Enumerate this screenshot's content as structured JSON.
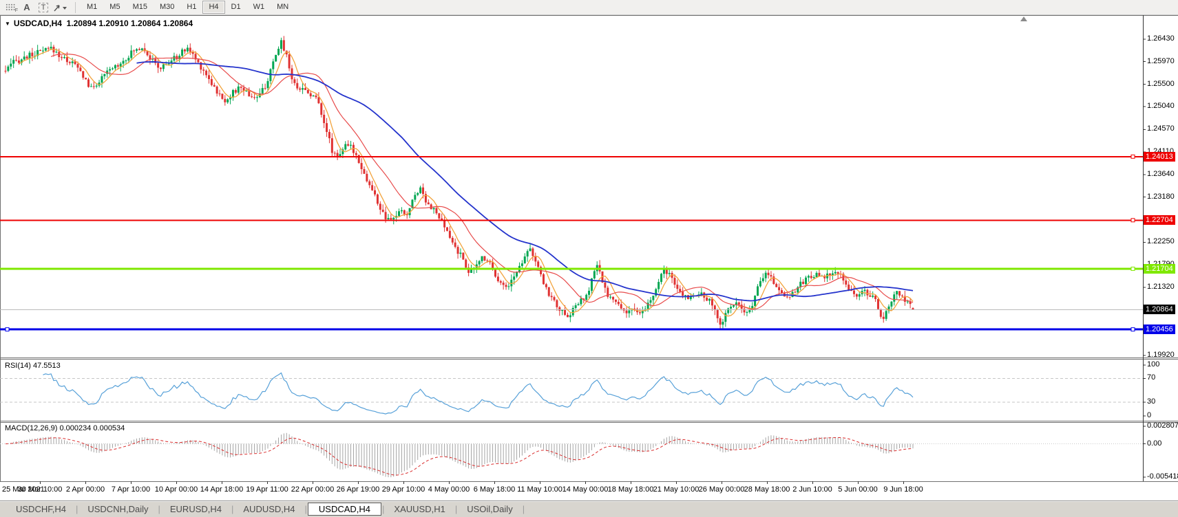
{
  "toolbar": {
    "timeframes": [
      "M1",
      "M5",
      "M15",
      "M30",
      "H1",
      "H4",
      "D1",
      "W1",
      "MN"
    ],
    "active_timeframe": "H4",
    "tools": [
      "chart-grid",
      "font-a",
      "text-label",
      "arrows"
    ]
  },
  "chart": {
    "symbol_label": "USDCAD,H4",
    "ohlc_label": "1.20894 1.20910 1.20864 1.20864",
    "rsi_label": "RSI(14) 47.5513",
    "macd_label": "MACD(12,26,9) 0.000234 0.000534"
  },
  "chart_data": {
    "type": "candlestick",
    "symbol": "USDCAD",
    "timeframe": "H4",
    "ohlc": {
      "open": 1.20894,
      "high": 1.2091,
      "low": 1.20864,
      "close": 1.20864
    },
    "price_axis": {
      "min": 1.1992,
      "max": 1.2643,
      "ticks": [
        "1.26430",
        "1.25970",
        "1.25500",
        "1.25040",
        "1.24570",
        "1.24110",
        "1.23640",
        "1.23180",
        "1.22250",
        "1.21790",
        "1.21320",
        "1.20390",
        "1.19920"
      ]
    },
    "hlines": [
      {
        "price": 1.24013,
        "label": "1.24013",
        "color": "#ee0000",
        "width": 2
      },
      {
        "price": 1.22704,
        "label": "1.22704",
        "color": "#ee0000",
        "width": 2
      },
      {
        "price": 1.21704,
        "label": "1.21704",
        "color": "#7fe800",
        "width": 3
      },
      {
        "price": 1.20456,
        "label": "1.20456",
        "color": "#0000e8",
        "width": 3
      }
    ],
    "current_price": {
      "value": 1.20864,
      "label": "1.20864"
    },
    "colors": {
      "up": "#00a651",
      "down": "#e03232",
      "ma_fast": "#f2a33c",
      "ma_mid": "#e84b4b",
      "ma_slow": "#2433cc",
      "rsi": "#56a0d8",
      "level_dash": "#c6c6c6",
      "macd_hist": "#9a9a9a",
      "macd_signal": "#d92b2b",
      "current_line": "#b9b9b9",
      "frame": "#6f6f6f"
    },
    "moving_averages": [
      {
        "period": 6,
        "color_key": "ma_fast",
        "width": 1.3
      },
      {
        "period": 18,
        "color_key": "ma_mid",
        "width": 1.2
      },
      {
        "period": 50,
        "color_key": "ma_slow",
        "width": 1.8
      }
    ],
    "rsi": {
      "period": 14,
      "value": 47.5513,
      "levels": [
        70,
        30
      ],
      "axis_ticks": [
        "100",
        "70",
        "30",
        "0"
      ],
      "axis_values": [
        100,
        70,
        30,
        0
      ]
    },
    "macd": {
      "fast": 12,
      "slow": 26,
      "signal": 9,
      "values": [
        0.000234,
        0.000534
      ],
      "axis_max": 0.002807,
      "axis_min": -0.005418,
      "axis_ticks": [
        "0.002807",
        "0.00",
        "-0.005418"
      ],
      "axis_tick_values": [
        0.002807,
        0,
        -0.005418
      ]
    },
    "date_axis": [
      "25 Mar 2021",
      "30 Mar 10:00",
      "2 Apr 00:00",
      "7 Apr 10:00",
      "10 Apr 00:00",
      "14 Apr 18:00",
      "19 Apr 11:00",
      "22 Apr 00:00",
      "26 Apr 19:00",
      "29 Apr 10:00",
      "4 May 00:00",
      "6 May 18:00",
      "11 May 10:00",
      "14 May 00:00",
      "18 May 18:00",
      "21 May 10:00",
      "26 May 00:00",
      "28 May 18:00",
      "2 Jun 10:00",
      "5 Jun 00:00",
      "9 Jun 18:00"
    ],
    "candle_count": 340,
    "x_range": [
      8,
      1326
    ],
    "close_path": [
      [
        8,
        1.2578
      ],
      [
        20,
        1.2595
      ],
      [
        40,
        1.2608
      ],
      [
        62,
        1.2618
      ],
      [
        75,
        1.2624
      ],
      [
        90,
        1.2605
      ],
      [
        108,
        1.2592
      ],
      [
        122,
        1.2565
      ],
      [
        132,
        1.254
      ],
      [
        145,
        1.2558
      ],
      [
        160,
        1.258
      ],
      [
        178,
        1.2598
      ],
      [
        195,
        1.262
      ],
      [
        208,
        1.2628
      ],
      [
        220,
        1.26
      ],
      [
        232,
        1.2582
      ],
      [
        245,
        1.2595
      ],
      [
        260,
        1.261
      ],
      [
        272,
        1.2626
      ],
      [
        285,
        1.26
      ],
      [
        300,
        1.257
      ],
      [
        315,
        1.2535
      ],
      [
        325,
        1.2515
      ],
      [
        338,
        1.2532
      ],
      [
        350,
        1.2545
      ],
      [
        362,
        1.2528
      ],
      [
        375,
        1.2522
      ],
      [
        388,
        1.2555
      ],
      [
        400,
        1.2605
      ],
      [
        408,
        1.264
      ],
      [
        416,
        1.2612
      ],
      [
        426,
        1.255
      ],
      [
        438,
        1.2542
      ],
      [
        450,
        1.2532
      ],
      [
        462,
        1.2516
      ],
      [
        472,
        1.2468
      ],
      [
        482,
        1.2415
      ],
      [
        490,
        1.2402
      ],
      [
        500,
        1.2422
      ],
      [
        510,
        1.2421
      ],
      [
        520,
        1.2398
      ],
      [
        532,
        1.2355
      ],
      [
        542,
        1.2328
      ],
      [
        552,
        1.2295
      ],
      [
        562,
        1.2268
      ],
      [
        570,
        1.2272
      ],
      [
        580,
        1.2288
      ],
      [
        592,
        1.2282
      ],
      [
        602,
        1.2322
      ],
      [
        610,
        1.2338
      ],
      [
        620,
        1.2308
      ],
      [
        632,
        1.2288
      ],
      [
        642,
        1.2265
      ],
      [
        652,
        1.2238
      ],
      [
        662,
        1.2212
      ],
      [
        672,
        1.2192
      ],
      [
        682,
        1.2162
      ],
      [
        690,
        1.2172
      ],
      [
        700,
        1.2195
      ],
      [
        710,
        1.2188
      ],
      [
        722,
        1.2152
      ],
      [
        734,
        1.213
      ],
      [
        746,
        1.2152
      ],
      [
        758,
        1.2185
      ],
      [
        768,
        1.2218
      ],
      [
        776,
        1.2192
      ],
      [
        786,
        1.2152
      ],
      [
        796,
        1.2122
      ],
      [
        806,
        1.21
      ],
      [
        816,
        1.2082
      ],
      [
        824,
        1.2066
      ],
      [
        832,
        1.2088
      ],
      [
        842,
        1.2102
      ],
      [
        852,
        1.2112
      ],
      [
        860,
        1.215
      ],
      [
        866,
        1.2178
      ],
      [
        872,
        1.2158
      ],
      [
        880,
        1.2122
      ],
      [
        890,
        1.2106
      ],
      [
        900,
        1.2092
      ],
      [
        910,
        1.2082
      ],
      [
        918,
        1.209
      ],
      [
        928,
        1.2072
      ],
      [
        938,
        1.209
      ],
      [
        948,
        1.2112
      ],
      [
        958,
        1.2145
      ],
      [
        965,
        1.2172
      ],
      [
        972,
        1.2158
      ],
      [
        980,
        1.2135
      ],
      [
        990,
        1.2117
      ],
      [
        1000,
        1.2112
      ],
      [
        1010,
        1.212
      ],
      [
        1020,
        1.2115
      ],
      [
        1030,
        1.2105
      ],
      [
        1040,
        1.2078
      ],
      [
        1047,
        1.2056
      ],
      [
        1055,
        1.2082
      ],
      [
        1065,
        1.21
      ],
      [
        1075,
        1.2092
      ],
      [
        1083,
        1.2072
      ],
      [
        1090,
        1.2088
      ],
      [
        1098,
        1.2122
      ],
      [
        1108,
        1.2152
      ],
      [
        1115,
        1.2165
      ],
      [
        1124,
        1.2142
      ],
      [
        1134,
        1.2122
      ],
      [
        1144,
        1.2112
      ],
      [
        1154,
        1.2126
      ],
      [
        1164,
        1.214
      ],
      [
        1174,
        1.2154
      ],
      [
        1184,
        1.216
      ],
      [
        1194,
        1.215
      ],
      [
        1204,
        1.2158
      ],
      [
        1214,
        1.2162
      ],
      [
        1224,
        1.2152
      ],
      [
        1234,
        1.2128
      ],
      [
        1244,
        1.2112
      ],
      [
        1254,
        1.2125
      ],
      [
        1264,
        1.2118
      ],
      [
        1274,
        1.2098
      ],
      [
        1283,
        1.2062
      ],
      [
        1292,
        1.2098
      ],
      [
        1302,
        1.2122
      ],
      [
        1312,
        1.2108
      ],
      [
        1320,
        1.2095
      ],
      [
        1326,
        1.20864
      ]
    ]
  },
  "tabs": {
    "items": [
      "USDCHF,H4",
      "USDCNH,Daily",
      "EURUSD,H4",
      "AUDUSD,H4",
      "USDCAD,H4",
      "XAUUSD,H1",
      "USOil,Daily"
    ],
    "active": "USDCAD,H4"
  }
}
